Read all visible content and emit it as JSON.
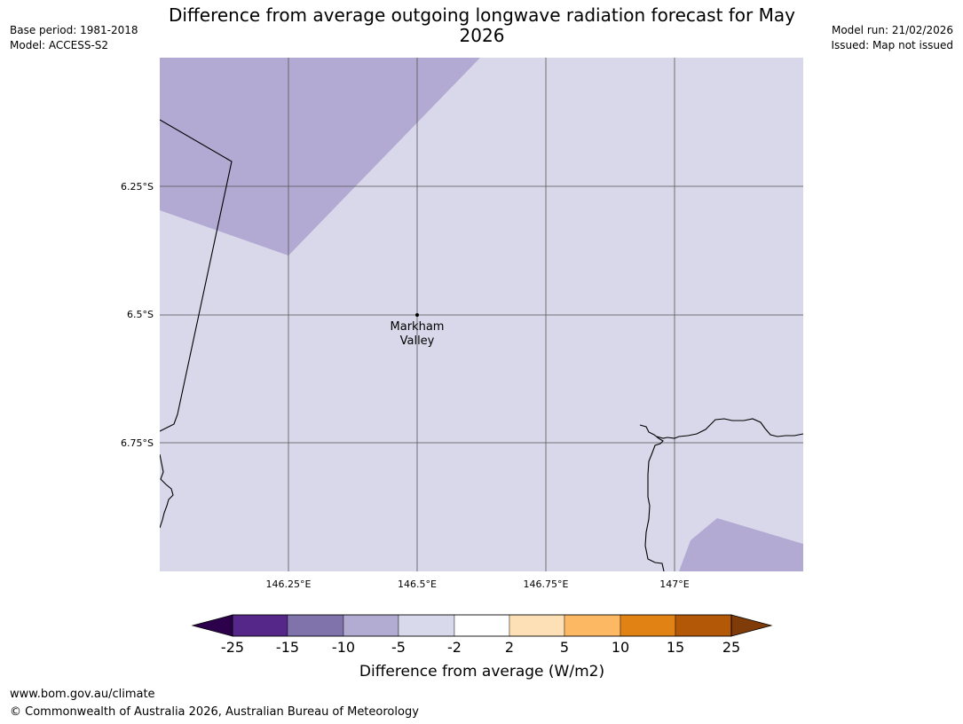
{
  "header": {
    "title": "Difference from average outgoing longwave radiation forecast for May 2026",
    "base_period": "Base period: 1981-2018",
    "model": "Model: ACCESS-S2",
    "model_run": "Model run: 21/02/2026",
    "issued": "Issued: Map not issued"
  },
  "map": {
    "lon_labels": [
      "146.25°E",
      "146.5°E",
      "146.75°E",
      "147°E"
    ],
    "lat_labels": [
      "6.25°S",
      "6.5°S",
      "6.75°S"
    ],
    "place": {
      "name_line1": "Markham",
      "name_line2": "Valley"
    },
    "colors": {
      "background_category": "#d8d8ea",
      "negative_category": "#b2aad2",
      "coastline": "#000000",
      "gridline": "#555555"
    }
  },
  "colorbar": {
    "label": "Difference from average (W/m2)",
    "ticks": [
      "-25",
      "-15",
      "-10",
      "-5",
      "-2",
      "2",
      "5",
      "10",
      "15",
      "25"
    ],
    "colors": [
      "#2d004b",
      "#542788",
      "#8073ac",
      "#b2abd2",
      "#d8daeb",
      "#ffffff",
      "#fee0b6",
      "#fdb863",
      "#e08214",
      "#b35806",
      "#7f3b08"
    ]
  },
  "footer": {
    "url": "www.bom.gov.au/climate",
    "copyright": "© Commonwealth of Australia 2026, Australian Bureau of Meteorology"
  }
}
